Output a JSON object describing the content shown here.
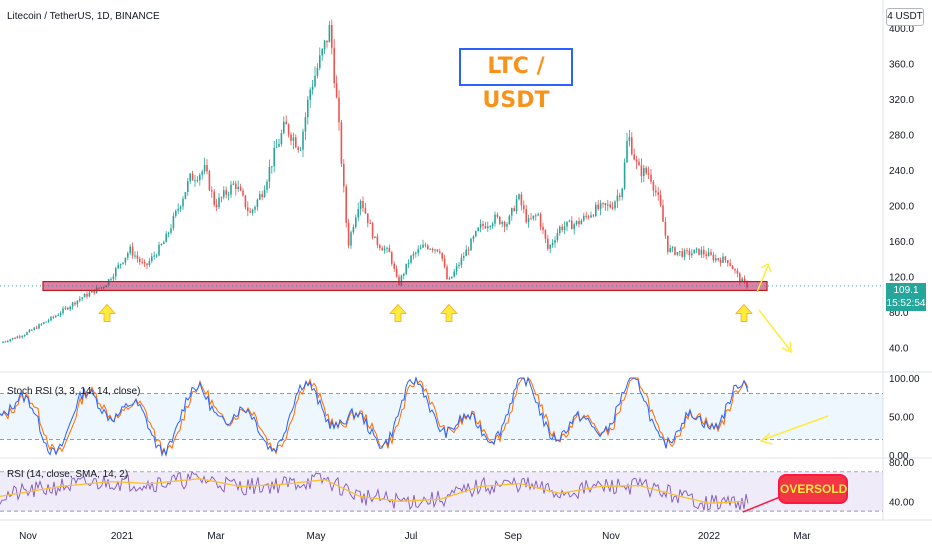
{
  "header": {
    "symbol_line": "Litecoin / TetherUS, 1D, BINANCE",
    "unit": "4 USDT",
    "title": "LTC / USDT"
  },
  "last_price": {
    "value": "109.1",
    "countdown": "15:52:54"
  },
  "annotations": {
    "oversold": "OVERSOLD"
  },
  "colors": {
    "up": "#26a69a",
    "down": "#ef5350",
    "support_zone": "#c2185b",
    "arrow": "#ffeb3b",
    "stoch_k": "#2962ff",
    "stoch_d": "#ff6d00",
    "rsi": "#7e57c2",
    "rsi_ma": "#fbc02d"
  },
  "chart_data": [
    {
      "type": "line",
      "name": "price",
      "x_tick_labels": [
        "Nov",
        "2021",
        "Mar",
        "May",
        "Jul",
        "Sep",
        "Nov",
        "2022",
        "Mar"
      ],
      "y_tick_labels": [
        "40.0",
        "80.0",
        "120.0",
        "160.0",
        "200.0",
        "240.0",
        "280.0",
        "320.0",
        "360.0",
        "400.0"
      ],
      "ylim": [
        20,
        420
      ],
      "support_zone": [
        104,
        114
      ],
      "close_path": [
        [
          0,
          45
        ],
        [
          25,
          55
        ],
        [
          55,
          75
        ],
        [
          80,
          95
        ],
        [
          105,
          110
        ],
        [
          130,
          150
        ],
        [
          145,
          130
        ],
        [
          165,
          160
        ],
        [
          190,
          230
        ],
        [
          205,
          240
        ],
        [
          215,
          200
        ],
        [
          235,
          225
        ],
        [
          250,
          190
        ],
        [
          262,
          215
        ],
        [
          275,
          260
        ],
        [
          285,
          290
        ],
        [
          300,
          265
        ],
        [
          310,
          330
        ],
        [
          322,
          370
        ],
        [
          330,
          400
        ],
        [
          338,
          300
        ],
        [
          348,
          155
        ],
        [
          360,
          210
        ],
        [
          375,
          160
        ],
        [
          390,
          145
        ],
        [
          398,
          110
        ],
        [
          410,
          140
        ],
        [
          425,
          155
        ],
        [
          440,
          150
        ],
        [
          448,
          112
        ],
        [
          462,
          140
        ],
        [
          480,
          175
        ],
        [
          495,
          185
        ],
        [
          508,
          180
        ],
        [
          518,
          210
        ],
        [
          528,
          180
        ],
        [
          538,
          190
        ],
        [
          548,
          150
        ],
        [
          560,
          175
        ],
        [
          578,
          180
        ],
        [
          595,
          195
        ],
        [
          612,
          200
        ],
        [
          622,
          220
        ],
        [
          628,
          280
        ],
        [
          638,
          240
        ],
        [
          650,
          235
        ],
        [
          660,
          200
        ],
        [
          668,
          150
        ],
        [
          685,
          145
        ],
        [
          700,
          148
        ],
        [
          715,
          140
        ],
        [
          728,
          138
        ],
        [
          740,
          116
        ],
        [
          748,
          109
        ]
      ],
      "arrow_up_positions": [
        107,
        398,
        449,
        744
      ]
    },
    {
      "type": "line",
      "name": "Stoch RSI (3, 3, 14, 14, close)",
      "y_tick_labels": [
        "0.00",
        "50.00",
        "100.00"
      ],
      "ylim": [
        0,
        100
      ],
      "bands": [
        20,
        80
      ]
    },
    {
      "type": "line",
      "name": "RSI (14, close, SMA, 14, 2)",
      "y_tick_labels": [
        "40.00",
        "80.00"
      ],
      "ylim": [
        25,
        80
      ],
      "bands": [
        30,
        70
      ],
      "rsi_ma_path": [
        [
          0,
          45
        ],
        [
          60,
          55
        ],
        [
          110,
          60
        ],
        [
          150,
          58
        ],
        [
          200,
          63
        ],
        [
          240,
          55
        ],
        [
          280,
          57
        ],
        [
          325,
          62
        ],
        [
          360,
          45
        ],
        [
          400,
          40
        ],
        [
          440,
          42
        ],
        [
          480,
          55
        ],
        [
          520,
          58
        ],
        [
          560,
          48
        ],
        [
          600,
          55
        ],
        [
          640,
          56
        ],
        [
          680,
          45
        ],
        [
          710,
          38
        ],
        [
          745,
          40
        ]
      ]
    }
  ]
}
